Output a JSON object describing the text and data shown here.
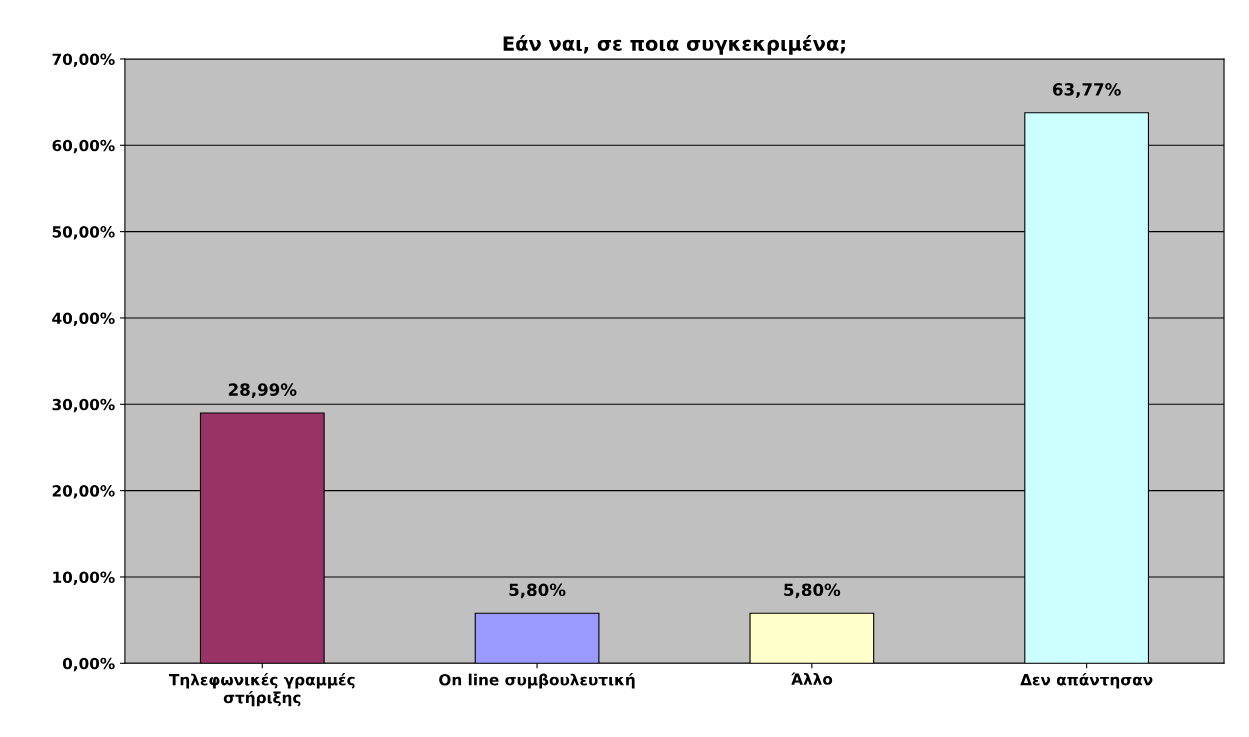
{
  "chart_data": {
    "type": "bar",
    "title": "Εάν ναι, σε ποια συγκεκριμένα;",
    "categories": [
      "Τηλεφωνικές γραμμές\nστήριξης",
      "On line συμβουλευτική",
      "Άλλο",
      "Δεν απάντησαν"
    ],
    "values": [
      28.99,
      5.8,
      5.8,
      63.77
    ],
    "colors": [
      "#993366",
      "#9999ff",
      "#ffffcc",
      "#ccffff"
    ],
    "value_labels": [
      "28,99%",
      "5,80%",
      "5,80%",
      "63,77%"
    ],
    "ylim": [
      0,
      70
    ],
    "yticks": [
      {
        "value": 0,
        "label": "0,00%"
      },
      {
        "value": 10,
        "label": "10,00%"
      },
      {
        "value": 20,
        "label": "20,00%"
      },
      {
        "value": 30,
        "label": "30,00%"
      },
      {
        "value": 40,
        "label": "40,00%"
      },
      {
        "value": 50,
        "label": "50,00%"
      },
      {
        "value": 60,
        "label": "60,00%"
      },
      {
        "value": 70,
        "label": "70,00%"
      }
    ],
    "grid": "y"
  }
}
